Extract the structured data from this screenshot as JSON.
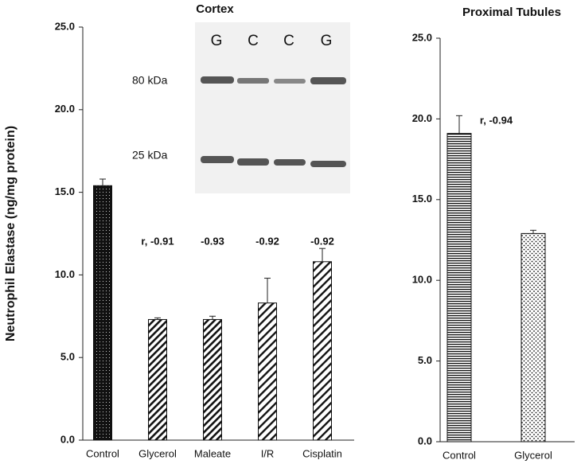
{
  "chart_data": [
    {
      "type": "bar",
      "title": "Cortex",
      "ylabel": "Neutrophil Elastase  (ng/mg protein)",
      "categories": [
        "Control",
        "Glycerol",
        "Maleate",
        "I/R",
        "Cisplatin"
      ],
      "values": [
        15.4,
        7.3,
        7.3,
        8.3,
        10.8
      ],
      "errors": [
        0.4,
        0.1,
        0.2,
        1.5,
        0.8
      ],
      "bar_labels": [
        null,
        "r, -0.91",
        "-0.93",
        "-0.92",
        "-0.92"
      ],
      "ylim": [
        0,
        25
      ],
      "yticks": [
        {
          "value": 0,
          "label": "0.0"
        },
        {
          "value": 5,
          "label": "5.0"
        },
        {
          "value": 10,
          "label": "10.0"
        },
        {
          "value": 15,
          "label": "15.0"
        },
        {
          "value": 20,
          "label": "20.0"
        },
        {
          "value": 25,
          "label": "25.0"
        }
      ],
      "inset": {
        "lanes": [
          "G",
          "C",
          "C",
          "G"
        ],
        "bands": [
          "80 kDa",
          "25 kDa"
        ]
      }
    },
    {
      "type": "bar",
      "title": "Proximal Tubules",
      "categories": [
        "Control",
        "Glycerol"
      ],
      "values": [
        19.1,
        12.9
      ],
      "errors": [
        1.1,
        0.2
      ],
      "annotation": "r, -0.94",
      "ylim": [
        0,
        25
      ],
      "yticks": [
        {
          "value": 0,
          "label": "0.0"
        },
        {
          "value": 5,
          "label": "5.0"
        },
        {
          "value": 10,
          "label": "10.0"
        },
        {
          "value": 15,
          "label": "15.0"
        },
        {
          "value": 20,
          "label": "20.0"
        },
        {
          "value": 25,
          "label": "25.0"
        }
      ]
    }
  ]
}
